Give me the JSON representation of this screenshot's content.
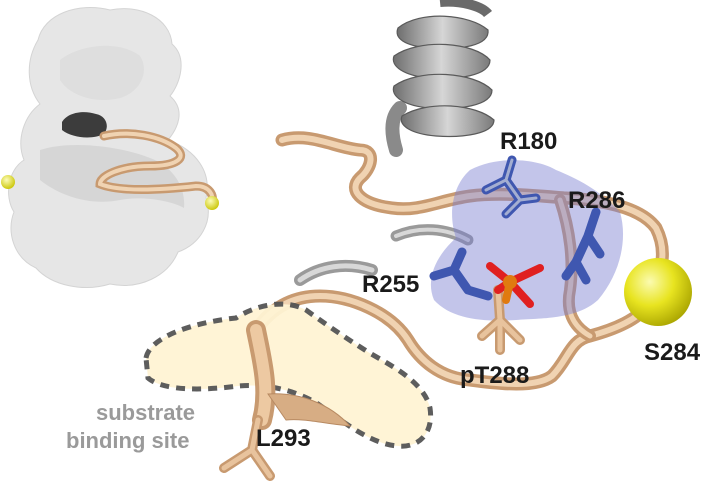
{
  "labels": {
    "r180": "R180",
    "r286": "R286",
    "r255": "R255",
    "s284": "S284",
    "pt288": "pT288",
    "l293": "L293",
    "site_line1": "substrate",
    "site_line2": "binding site"
  },
  "colors": {
    "backbone": "#e8c39d",
    "backbone_dark": "#c89a70",
    "helix": "#8c8c8c",
    "helix_light": "#c8c8c8",
    "surface": "#e6e6e6",
    "surface_shade": "#cfcfcf",
    "pocket": "#7a7fd0",
    "sidechain_blue": "#3f57b0",
    "phosphate": "#e07a10",
    "oxygen": "#e02020",
    "sphere": "#e8e420",
    "binding_site_fill": "#fff4d4",
    "binding_site_stroke": "#555555"
  }
}
